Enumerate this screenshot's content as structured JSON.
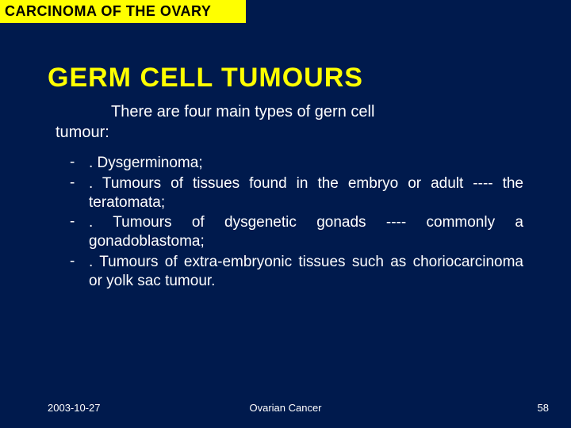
{
  "colors": {
    "background": "#001a4d",
    "header_bg": "#ffff00",
    "header_text": "#000000",
    "title_color": "#ffff00",
    "body_text": "#ffffff"
  },
  "typography": {
    "header_fontsize": 18,
    "title_fontsize": 34,
    "subtitle_fontsize": 20,
    "bullet_fontsize": 19,
    "footer_fontsize": 13
  },
  "header": "CARCINOMA OF THE OVARY",
  "title": "GERM CELL TUMOURS",
  "subtitle_line1": "There are four main types of gern cell",
  "subtitle_line2": "tumour:",
  "bullets": [
    ". Dysgerminoma;",
    ". Tumours of tissues found in the embryo or adult ---- the teratomata;",
    ". Tumours of dysgenetic gonads ---- commonly a gonadoblastoma;",
    ". Tumours of extra-embryonic tissues such as choriocarcinoma or yolk sac tumour."
  ],
  "footer": {
    "date": "2003-10-27",
    "center": "Ovarian Cancer",
    "page": "58"
  }
}
